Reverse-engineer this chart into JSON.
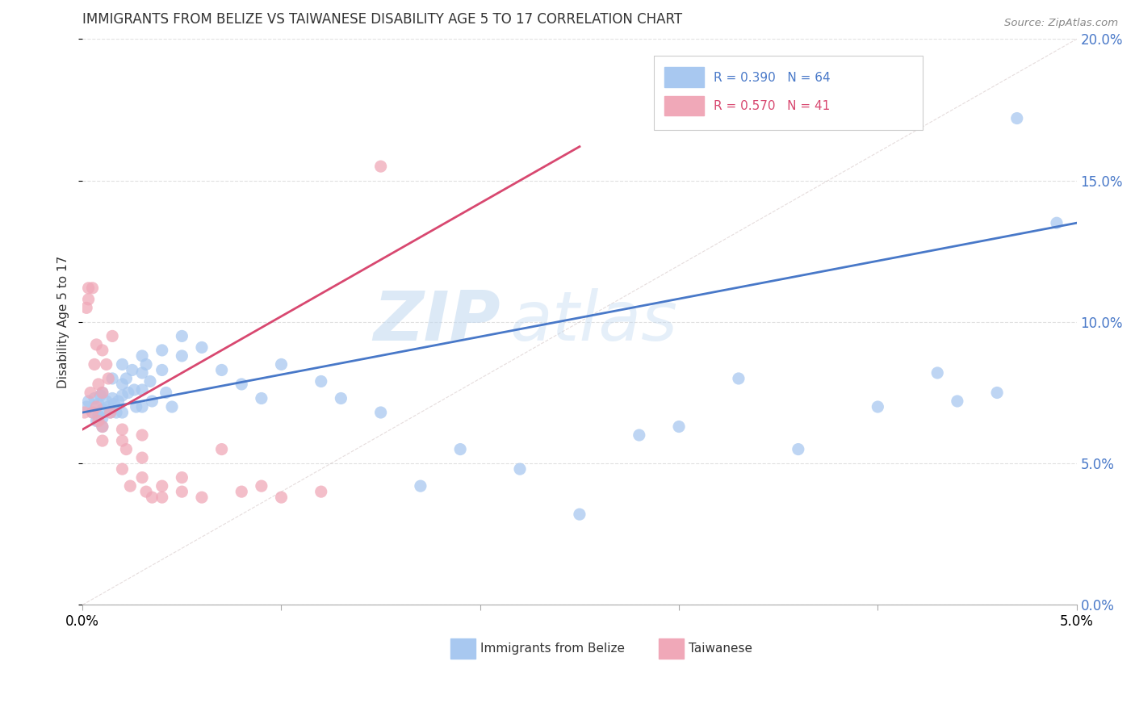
{
  "title": "IMMIGRANTS FROM BELIZE VS TAIWANESE DISABILITY AGE 5 TO 17 CORRELATION CHART",
  "source": "Source: ZipAtlas.com",
  "ylabel": "Disability Age 5 to 17",
  "legend_label1": "Immigrants from Belize",
  "legend_label2": "Taiwanese",
  "legend_R1": "R = 0.390",
  "legend_N1": "N = 64",
  "legend_R2": "R = 0.570",
  "legend_N2": "N = 41",
  "xlim": [
    0.0,
    0.05
  ],
  "ylim": [
    0.0,
    0.2
  ],
  "blue_color": "#A8C8F0",
  "pink_color": "#F0A8B8",
  "blue_line_color": "#4878C8",
  "pink_line_color": "#D84870",
  "grid_color": "#CCCCCC",
  "watermark_zip": "ZIP",
  "watermark_atlas": "atlas",
  "blue_scatter_x": [
    0.0002,
    0.0003,
    0.0005,
    0.0006,
    0.0007,
    0.0008,
    0.0008,
    0.0009,
    0.001,
    0.001,
    0.001,
    0.001,
    0.0012,
    0.0013,
    0.0014,
    0.0015,
    0.0015,
    0.0016,
    0.0017,
    0.0018,
    0.002,
    0.002,
    0.002,
    0.002,
    0.0022,
    0.0023,
    0.0025,
    0.0026,
    0.0027,
    0.003,
    0.003,
    0.003,
    0.003,
    0.0032,
    0.0034,
    0.0035,
    0.004,
    0.004,
    0.0042,
    0.0045,
    0.005,
    0.005,
    0.006,
    0.007,
    0.008,
    0.009,
    0.01,
    0.012,
    0.013,
    0.015,
    0.017,
    0.019,
    0.022,
    0.025,
    0.028,
    0.03,
    0.033,
    0.036,
    0.04,
    0.043,
    0.044,
    0.046,
    0.047,
    0.049
  ],
  "blue_scatter_y": [
    0.07,
    0.072,
    0.068,
    0.073,
    0.065,
    0.071,
    0.067,
    0.074,
    0.069,
    0.066,
    0.063,
    0.075,
    0.072,
    0.07,
    0.068,
    0.08,
    0.073,
    0.071,
    0.068,
    0.072,
    0.085,
    0.078,
    0.074,
    0.068,
    0.08,
    0.075,
    0.083,
    0.076,
    0.07,
    0.088,
    0.082,
    0.076,
    0.07,
    0.085,
    0.079,
    0.072,
    0.09,
    0.083,
    0.075,
    0.07,
    0.095,
    0.088,
    0.091,
    0.083,
    0.078,
    0.073,
    0.085,
    0.079,
    0.073,
    0.068,
    0.042,
    0.055,
    0.048,
    0.032,
    0.06,
    0.063,
    0.08,
    0.055,
    0.07,
    0.082,
    0.072,
    0.075,
    0.172,
    0.135
  ],
  "pink_scatter_x": [
    0.0001,
    0.0002,
    0.0003,
    0.0003,
    0.0004,
    0.0005,
    0.0005,
    0.0006,
    0.0007,
    0.0007,
    0.0008,
    0.0008,
    0.001,
    0.001,
    0.001,
    0.001,
    0.0012,
    0.0013,
    0.0014,
    0.0015,
    0.002,
    0.002,
    0.002,
    0.0022,
    0.0024,
    0.003,
    0.003,
    0.003,
    0.0032,
    0.0035,
    0.004,
    0.004,
    0.005,
    0.005,
    0.006,
    0.007,
    0.008,
    0.009,
    0.01,
    0.012,
    0.015
  ],
  "pink_scatter_y": [
    0.068,
    0.105,
    0.108,
    0.112,
    0.075,
    0.112,
    0.068,
    0.085,
    0.092,
    0.07,
    0.078,
    0.065,
    0.09,
    0.075,
    0.063,
    0.058,
    0.085,
    0.08,
    0.068,
    0.095,
    0.062,
    0.058,
    0.048,
    0.055,
    0.042,
    0.06,
    0.052,
    0.045,
    0.04,
    0.038,
    0.042,
    0.038,
    0.045,
    0.04,
    0.038,
    0.055,
    0.04,
    0.042,
    0.038,
    0.04,
    0.155
  ],
  "blue_line_x": [
    0.0,
    0.05
  ],
  "blue_line_y": [
    0.068,
    0.135
  ],
  "pink_line_x": [
    0.0,
    0.025
  ],
  "pink_line_y": [
    0.062,
    0.162
  ],
  "diag_line_x": [
    0.0,
    0.05
  ],
  "diag_line_y": [
    0.0,
    0.2
  ]
}
